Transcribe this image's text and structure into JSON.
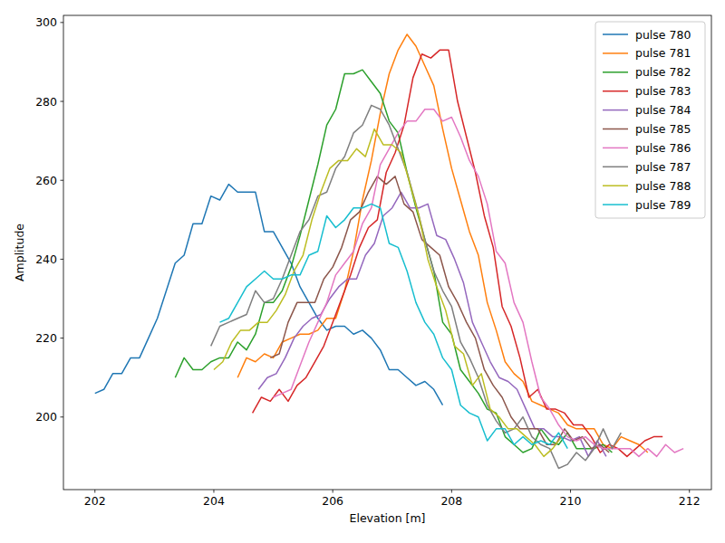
{
  "chart_data": {
    "type": "line",
    "x_label": "Elevation [m]",
    "y_label": "Amplitude",
    "xlim": [
      201.47,
      212.37
    ],
    "ylim": [
      181.6,
      301.8
    ],
    "xticks": [
      202,
      204,
      206,
      208,
      210,
      212
    ],
    "yticks": [
      200,
      220,
      240,
      260,
      280,
      300
    ],
    "grid": false,
    "legend": "upper right",
    "series": [
      {
        "name": "pulse 780",
        "color": "#1f77b4",
        "x": [
          202.0,
          202.15,
          202.3,
          202.45,
          202.6,
          202.75,
          202.9,
          203.05,
          203.2,
          203.35,
          203.5,
          203.65,
          203.8,
          203.95,
          204.1,
          204.25,
          204.4,
          204.55,
          204.7,
          204.85,
          205.0,
          205.15,
          205.3,
          205.45,
          205.6,
          205.75,
          205.9,
          206.05,
          206.2,
          206.35,
          206.5,
          206.65,
          206.8,
          206.95,
          207.1,
          207.25,
          207.4,
          207.55,
          207.7,
          207.85
        ],
        "values": [
          206,
          207,
          211,
          211,
          215,
          215,
          220,
          225,
          232,
          239,
          241,
          249,
          249,
          256,
          255,
          259,
          257,
          257,
          257,
          247,
          247,
          243,
          239,
          233,
          229,
          225,
          222,
          223,
          223,
          221,
          222,
          220,
          217,
          212,
          212,
          210,
          208,
          209,
          207,
          203
        ]
      },
      {
        "name": "pulse 781",
        "color": "#ff7f0e",
        "x": [
          204.4,
          204.55,
          204.7,
          204.85,
          205.0,
          205.15,
          205.3,
          205.45,
          205.6,
          205.75,
          205.9,
          206.05,
          206.2,
          206.35,
          206.5,
          206.65,
          206.8,
          206.95,
          207.1,
          207.25,
          207.4,
          207.55,
          207.7,
          207.85,
          208.0,
          208.15,
          208.3,
          208.45,
          208.6,
          208.75,
          208.9,
          209.05,
          209.2,
          209.35,
          209.5,
          209.65,
          209.8,
          209.95,
          210.1,
          210.25,
          210.4,
          210.55,
          210.7,
          210.85,
          211.0,
          211.15,
          211.3
        ],
        "values": [
          210,
          215,
          214,
          216,
          215,
          219,
          220,
          221,
          221,
          222,
          225,
          225,
          232,
          242,
          255,
          265,
          277,
          287,
          293,
          297,
          294,
          289,
          284,
          273,
          263,
          255,
          247,
          241,
          229,
          222,
          214,
          211,
          209,
          204,
          203,
          202,
          201,
          198,
          197,
          197,
          197,
          193,
          192,
          195,
          194,
          193,
          191
        ]
      },
      {
        "name": "pulse 782",
        "color": "#2ca02c",
        "x": [
          203.35,
          203.5,
          203.65,
          203.8,
          203.95,
          204.1,
          204.25,
          204.4,
          204.55,
          204.7,
          204.85,
          205.0,
          205.15,
          205.3,
          205.45,
          205.6,
          205.75,
          205.9,
          206.05,
          206.2,
          206.35,
          206.5,
          206.65,
          206.8,
          206.95,
          207.1,
          207.25,
          207.4,
          207.55,
          207.7,
          207.85,
          208.0,
          208.15,
          208.3,
          208.45,
          208.6,
          208.75,
          208.9,
          209.05,
          209.2,
          209.35,
          209.5,
          209.65,
          209.8,
          209.95,
          210.1,
          210.25,
          210.4,
          210.55,
          210.7
        ],
        "values": [
          210,
          215,
          212,
          212,
          214,
          215,
          215,
          219,
          217,
          221,
          229,
          229,
          232,
          238,
          246,
          255,
          264,
          274,
          278,
          287,
          287,
          288,
          285,
          282,
          275,
          272,
          262,
          253,
          245,
          237,
          224,
          221,
          212,
          209,
          206,
          202,
          201,
          195,
          193,
          191,
          192,
          197,
          194,
          193,
          196,
          192,
          192,
          192,
          193,
          191
        ]
      },
      {
        "name": "pulse 783",
        "color": "#d62728",
        "x": [
          204.65,
          204.8,
          204.95,
          205.1,
          205.25,
          205.4,
          205.55,
          205.7,
          205.85,
          206.0,
          206.15,
          206.3,
          206.45,
          206.6,
          206.75,
          206.9,
          207.05,
          207.2,
          207.35,
          207.5,
          207.65,
          207.8,
          207.95,
          208.1,
          208.25,
          208.4,
          208.55,
          208.7,
          208.85,
          209.0,
          209.15,
          209.3,
          209.45,
          209.6,
          209.75,
          209.9,
          210.05,
          210.2,
          210.35,
          210.5,
          210.65,
          210.8,
          210.95,
          211.1,
          211.25,
          211.4,
          211.55
        ],
        "values": [
          201,
          205,
          204,
          207,
          204,
          208,
          210,
          214,
          218,
          224,
          230,
          236,
          243,
          248,
          250,
          262,
          267,
          274,
          286,
          292,
          291,
          293,
          293,
          280,
          271,
          262,
          251,
          243,
          228,
          223,
          215,
          205,
          207,
          202,
          202,
          201,
          198,
          198,
          195,
          191,
          193,
          192,
          190,
          192,
          194,
          195,
          195
        ]
      },
      {
        "name": "pulse 784",
        "color": "#9467bd",
        "x": [
          204.75,
          204.9,
          205.05,
          205.2,
          205.35,
          205.5,
          205.65,
          205.8,
          205.95,
          206.1,
          206.25,
          206.4,
          206.55,
          206.7,
          206.85,
          207.0,
          207.15,
          207.3,
          207.45,
          207.6,
          207.75,
          207.9,
          208.05,
          208.2,
          208.35,
          208.5,
          208.65,
          208.8,
          208.95,
          209.1,
          209.25,
          209.4,
          209.55,
          209.7,
          209.85,
          210.0,
          210.15,
          210.3,
          210.45,
          210.6
        ],
        "values": [
          207,
          210,
          211,
          215,
          220,
          223,
          225,
          226,
          230,
          233,
          235,
          235,
          241,
          244,
          251,
          253,
          257,
          253,
          253,
          254,
          246,
          245,
          240,
          234,
          224,
          219,
          214,
          210,
          209,
          207,
          202,
          197,
          197,
          195,
          195,
          194,
          195,
          190,
          194,
          190
        ]
      },
      {
        "name": "pulse 785",
        "color": "#8c564b",
        "x": [
          204.95,
          205.1,
          205.25,
          205.4,
          205.55,
          205.7,
          205.85,
          206.0,
          206.15,
          206.3,
          206.45,
          206.6,
          206.75,
          206.9,
          207.05,
          207.2,
          207.35,
          207.5,
          207.65,
          207.8,
          207.95,
          208.1,
          208.25,
          208.4,
          208.55,
          208.7,
          208.85,
          209.0,
          209.15,
          209.3,
          209.45,
          209.6,
          209.75,
          209.9,
          210.05,
          210.2,
          210.35,
          210.5,
          210.65
        ],
        "values": [
          215,
          216,
          224,
          229,
          229,
          229,
          235,
          238,
          243,
          250,
          252,
          257,
          261,
          259,
          261,
          254,
          252,
          245,
          243,
          241,
          233,
          229,
          224,
          220,
          212,
          208,
          205,
          200,
          197,
          197,
          197,
          193,
          193,
          197,
          194,
          195,
          192,
          193,
          191
        ]
      },
      {
        "name": "pulse 786",
        "color": "#e377c2",
        "x": [
          205.0,
          205.15,
          205.3,
          205.45,
          205.6,
          205.75,
          205.9,
          206.05,
          206.2,
          206.35,
          206.5,
          206.65,
          206.8,
          206.95,
          207.1,
          207.25,
          207.4,
          207.55,
          207.7,
          207.85,
          208.0,
          208.15,
          208.3,
          208.45,
          208.6,
          208.75,
          208.9,
          209.05,
          209.2,
          209.35,
          209.5,
          209.65,
          209.8,
          209.95,
          210.1,
          210.25,
          210.4,
          210.55,
          210.7,
          210.85,
          211.0,
          211.15,
          211.3,
          211.45,
          211.6,
          211.75,
          211.9
        ],
        "values": [
          205,
          206,
          207,
          213,
          219,
          224,
          229,
          236,
          239,
          242,
          249,
          253,
          264,
          268,
          272,
          275,
          275,
          278,
          278,
          275,
          276,
          271,
          265,
          261,
          254,
          242,
          239,
          229,
          224,
          214,
          205,
          202,
          198,
          195,
          194,
          195,
          193,
          192,
          192,
          192,
          192,
          190,
          192,
          190,
          193,
          191,
          192
        ]
      },
      {
        "name": "pulse 787",
        "color": "#7f7f7f",
        "x": [
          203.95,
          204.1,
          204.25,
          204.4,
          204.55,
          204.7,
          204.85,
          205.0,
          205.15,
          205.3,
          205.45,
          205.6,
          205.75,
          205.9,
          206.05,
          206.2,
          206.35,
          206.5,
          206.65,
          206.8,
          206.95,
          207.1,
          207.25,
          207.4,
          207.55,
          207.7,
          207.85,
          208.0,
          208.15,
          208.3,
          208.45,
          208.6,
          208.75,
          208.9,
          209.05,
          209.2,
          209.35,
          209.5,
          209.65,
          209.8,
          209.95,
          210.1,
          210.25,
          210.4,
          210.55,
          210.7,
          210.85
        ],
        "values": [
          218,
          223,
          224,
          225,
          226,
          232,
          229,
          230,
          235,
          241,
          247,
          250,
          256,
          257,
          263,
          266,
          272,
          274,
          279,
          278,
          274,
          268,
          262,
          254,
          245,
          237,
          232,
          228,
          219,
          215,
          210,
          203,
          199,
          196,
          197,
          200,
          195,
          193,
          192,
          187,
          188,
          191,
          189,
          192,
          197,
          192,
          196
        ]
      },
      {
        "name": "pulse 788",
        "color": "#bcbd22",
        "x": [
          204.0,
          204.15,
          204.3,
          204.45,
          204.6,
          204.75,
          204.9,
          205.05,
          205.2,
          205.35,
          205.5,
          205.65,
          205.8,
          205.95,
          206.1,
          206.25,
          206.4,
          206.55,
          206.7,
          206.85,
          207.0,
          207.15,
          207.3,
          207.45,
          207.6,
          207.75,
          207.9,
          208.05,
          208.2,
          208.35,
          208.5,
          208.65,
          208.8,
          208.95,
          209.1,
          209.25,
          209.4,
          209.55,
          209.7,
          209.85
        ],
        "values": [
          212,
          214,
          219,
          222,
          222,
          224,
          224,
          227,
          231,
          237,
          241,
          250,
          257,
          263,
          265,
          265,
          268,
          266,
          273,
          269,
          269,
          267,
          259,
          251,
          240,
          233,
          227,
          218,
          216,
          208,
          211,
          202,
          200,
          197,
          197,
          195,
          193,
          190,
          192,
          195
        ]
      },
      {
        "name": "pulse 789",
        "color": "#17becf",
        "x": [
          204.1,
          204.25,
          204.4,
          204.55,
          204.7,
          204.85,
          205.0,
          205.15,
          205.3,
          205.45,
          205.6,
          205.75,
          205.9,
          206.05,
          206.2,
          206.35,
          206.5,
          206.65,
          206.8,
          206.95,
          207.1,
          207.25,
          207.4,
          207.55,
          207.7,
          207.85,
          208.0,
          208.15,
          208.3,
          208.45,
          208.6,
          208.75,
          208.9,
          209.05,
          209.2,
          209.35,
          209.5,
          209.65,
          209.8,
          209.95
        ],
        "values": [
          224,
          225,
          229,
          233,
          235,
          237,
          235,
          235,
          236,
          236,
          241,
          242,
          251,
          248,
          250,
          253,
          253,
          254,
          253,
          244,
          243,
          237,
          229,
          224,
          221,
          215,
          212,
          203,
          201,
          200,
          194,
          197,
          197,
          193,
          195,
          193,
          194,
          193,
          196,
          192
        ]
      }
    ]
  }
}
